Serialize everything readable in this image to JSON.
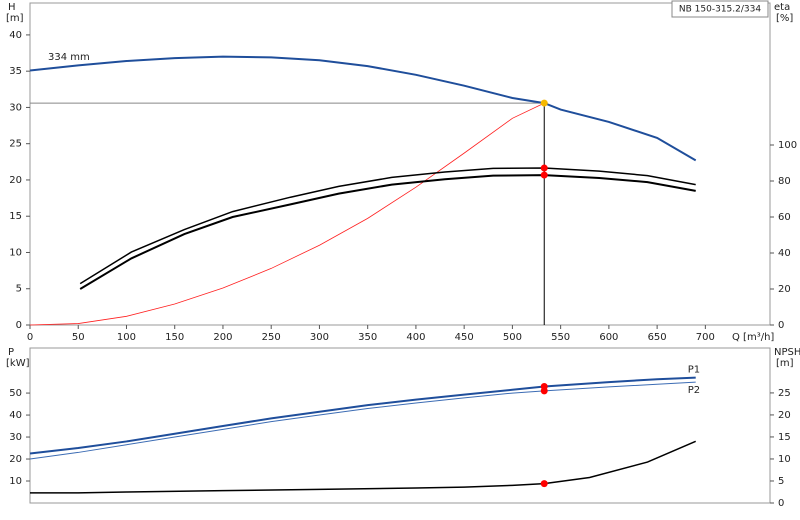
{
  "chart_data": [
    {
      "type": "line",
      "title": "NB 150-315.2/334",
      "annotation": "334 mm",
      "ylabel": "H",
      "yunit": "[m]",
      "y2label": "eta",
      "y2unit": "[%]",
      "xlabel": "Q [m³/h]",
      "xlim": [
        0,
        767
      ],
      "xticks": [
        0,
        50,
        100,
        150,
        200,
        250,
        300,
        350,
        400,
        450,
        500,
        550,
        600,
        650,
        700
      ],
      "ylim": [
        0,
        44.4
      ],
      "yticks": [
        0,
        5,
        10,
        15,
        20,
        25,
        30,
        35,
        40
      ],
      "y2lim": [
        0,
        178.9
      ],
      "y2ticks": [
        0,
        20,
        40,
        60,
        80,
        100
      ],
      "series": [
        {
          "color": "#1f4e9b",
          "width": 2,
          "x": [
            0,
            50,
            100,
            150,
            200,
            250,
            300,
            350,
            400,
            450,
            500,
            533,
            550,
            600,
            650,
            690
          ],
          "values": [
            35.1,
            35.8,
            36.4,
            36.8,
            37.0,
            36.9,
            36.5,
            35.7,
            34.5,
            33.0,
            31.3,
            30.6,
            29.7,
            28.0,
            25.8,
            22.7
          ]
        },
        {
          "color": "#ff2020",
          "width": 0.8,
          "x": [
            0,
            50,
            100,
            150,
            200,
            250,
            300,
            350,
            400,
            450,
            500,
            533
          ],
          "values": [
            0,
            0.2,
            1.2,
            2.9,
            5.1,
            7.8,
            11.0,
            14.7,
            19.0,
            23.7,
            28.5,
            30.6
          ]
        },
        {
          "color": "#000000",
          "width": 1.5,
          "axis": "y2",
          "x": [
            52,
            105,
            160,
            210,
            270,
            320,
            375,
            430,
            480,
            533,
            590,
            640,
            690
          ],
          "values": [
            23,
            40.5,
            53,
            63,
            71,
            77,
            82,
            85,
            87,
            87.2,
            85.5,
            83,
            78
          ]
        },
        {
          "color": "#000000",
          "width": 2,
          "axis": "y2",
          "x": [
            52,
            105,
            160,
            210,
            270,
            320,
            375,
            430,
            480,
            533,
            590,
            640,
            690
          ],
          "values": [
            20,
            37,
            50.5,
            60,
            67,
            73,
            78,
            81,
            83,
            83.3,
            81.7,
            79.4,
            74.5
          ]
        }
      ],
      "markers": [
        {
          "x": 533,
          "y": 30.6,
          "color": "#f5b800"
        },
        {
          "x": 533,
          "y": 87.2,
          "axis": "y2",
          "color": "#ff0000"
        },
        {
          "x": 533,
          "y": 83.3,
          "axis": "y2",
          "color": "#ff0000"
        }
      ]
    },
    {
      "type": "line",
      "ylabel": "P",
      "yunit": "[kW]",
      "y2label": "NPSH",
      "y2unit": "[m]",
      "xlim": [
        0,
        767
      ],
      "ylim": [
        0,
        70.5
      ],
      "yticks": [
        10,
        20,
        30,
        40,
        50
      ],
      "y2lim": [
        0,
        35.2
      ],
      "y2ticks": [
        0,
        5,
        10,
        15,
        20,
        25
      ],
      "series": [
        {
          "name": "P1",
          "color": "#1f4e9b",
          "width": 2,
          "x": [
            0,
            50,
            100,
            150,
            200,
            250,
            300,
            350,
            400,
            450,
            500,
            533,
            600,
            650,
            690
          ],
          "values": [
            22.5,
            25,
            28,
            31.5,
            35,
            38.5,
            41.5,
            44.5,
            47,
            49.3,
            51.5,
            53,
            55,
            56.3,
            57
          ]
        },
        {
          "name": "P2",
          "color": "#3c6cb4",
          "width": 1,
          "x": [
            0,
            50,
            100,
            150,
            200,
            250,
            300,
            350,
            400,
            450,
            500,
            533,
            600,
            650,
            690
          ],
          "values": [
            20,
            23,
            26.5,
            30,
            33.5,
            37,
            40,
            43,
            45.5,
            47.8,
            50,
            51,
            52.8,
            54,
            55
          ]
        },
        {
          "color": "#000000",
          "width": 1.5,
          "axis": "y2",
          "x": [
            0,
            50,
            100,
            200,
            300,
            400,
            450,
            500,
            533,
            580,
            640,
            690
          ],
          "values": [
            2.3,
            2.3,
            2.5,
            2.8,
            3.1,
            3.4,
            3.6,
            4.0,
            4.4,
            5.8,
            9.3,
            14.0
          ]
        }
      ],
      "markers": [
        {
          "x": 533,
          "y": 53,
          "color": "#ff0000"
        },
        {
          "x": 533,
          "y": 51,
          "color": "#ff0000"
        },
        {
          "x": 533,
          "y": 4.4,
          "axis": "y2",
          "color": "#ff0000"
        }
      ]
    }
  ]
}
